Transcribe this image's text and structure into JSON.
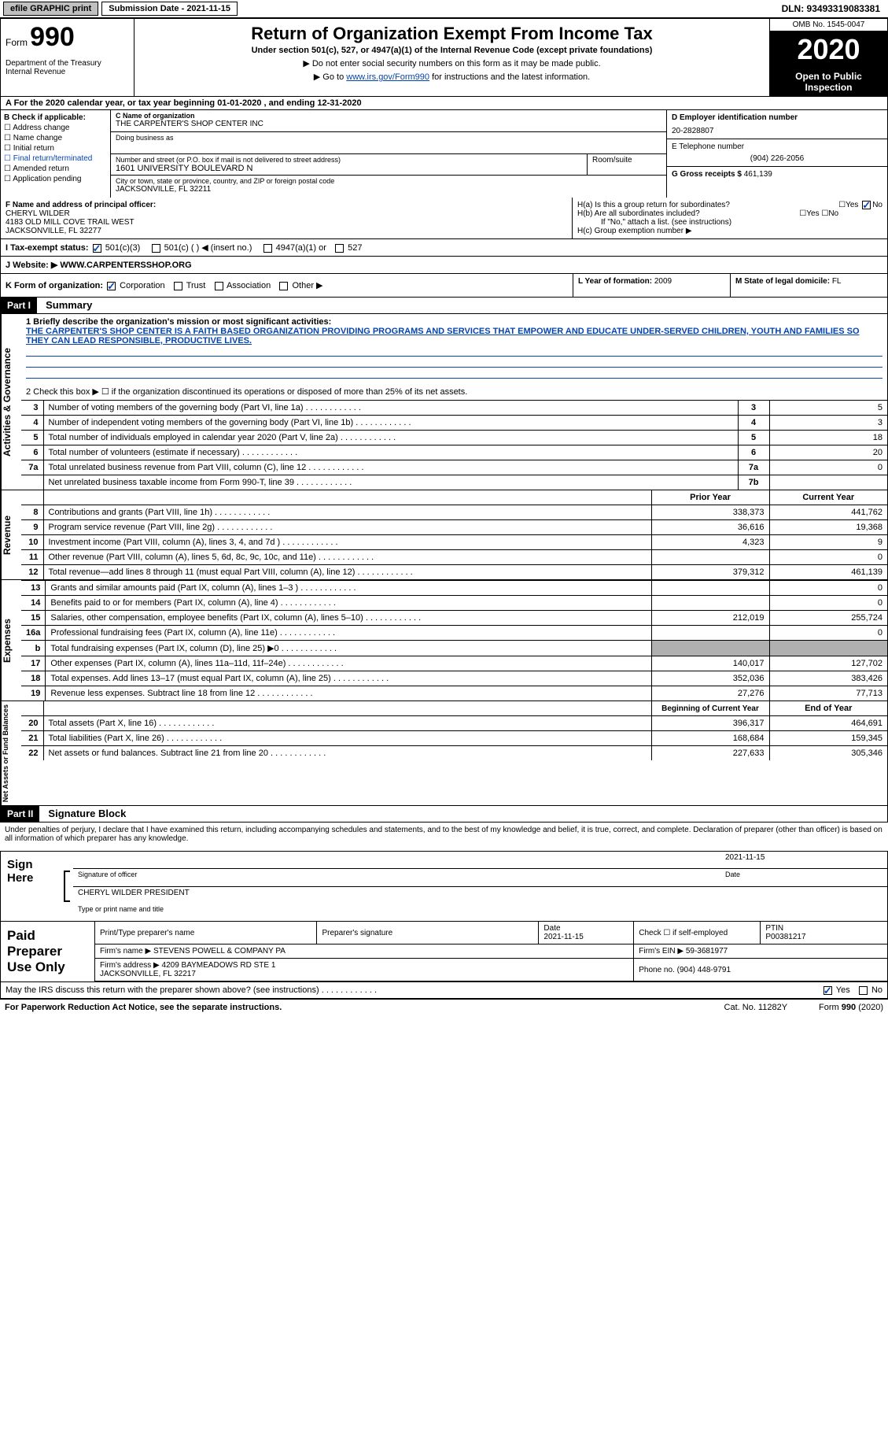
{
  "topbar": {
    "efile": "efile GRAPHIC print",
    "submission": "Submission Date - 2021-11-15",
    "dln": "DLN: 93493319083381"
  },
  "header": {
    "form_label": "Form",
    "form_no": "990",
    "dept": "Department of the Treasury\nInternal Revenue",
    "title": "Return of Organization Exempt From Income Tax",
    "subtitle": "Under section 501(c), 527, or 4947(a)(1) of the Internal Revenue Code (except private foundations)",
    "note1": "▶ Do not enter social security numbers on this form as it may be made public.",
    "note2_pre": "▶ Go to ",
    "note2_link": "www.irs.gov/Form990",
    "note2_post": " for instructions and the latest information.",
    "omb": "OMB No. 1545-0047",
    "year": "2020",
    "open": "Open to Public Inspection"
  },
  "period": "A For the 2020 calendar year, or tax year beginning 01-01-2020   , and ending 12-31-2020",
  "section_b": {
    "check_label": "B Check if applicable:",
    "checks": [
      "Address change",
      "Name change",
      "Initial return",
      "Final return/terminated",
      "Amended return",
      "Application pending"
    ],
    "c_label": "C Name of organization",
    "org_name": "THE CARPENTER'S SHOP CENTER INC",
    "dba_label": "Doing business as",
    "addr_label": "Number and street (or P.O. box if mail is not delivered to street address)",
    "room_label": "Room/suite",
    "addr": "1601 UNIVERSITY BOULEVARD N",
    "city_label": "City or town, state or province, country, and ZIP or foreign postal code",
    "city": "JACKSONVILLE, FL  32211",
    "d_label": "D Employer identification number",
    "ein": "20-2828807",
    "e_label": "E Telephone number",
    "phone": "(904) 226-2056",
    "g_label": "G Gross receipts $",
    "gross": "461,139"
  },
  "officer": {
    "f_label": "F Name and address of principal officer:",
    "name": "CHERYL WILDER",
    "addr1": "4183 OLD MILL COVE TRAIL WEST",
    "addr2": "JACKSONVILLE, FL  32277",
    "ha": "H(a)  Is this a group return for subordinates?",
    "hb": "H(b)  Are all subordinates included?",
    "hb_note": "If \"No,\" attach a list. (see instructions)",
    "hc": "H(c)  Group exemption number ▶",
    "yes": "Yes",
    "no": "No"
  },
  "status": {
    "label": "I  Tax-exempt status:",
    "opts": [
      "501(c)(3)",
      "501(c) (  ) ◀ (insert no.)",
      "4947(a)(1) or",
      "527"
    ]
  },
  "website": {
    "label": "J  Website: ▶",
    "value": "WWW.CARPENTERSSHOP.ORG"
  },
  "formorg": {
    "k_label": "K Form of organization:",
    "opts": [
      "Corporation",
      "Trust",
      "Association",
      "Other ▶"
    ],
    "l_label": "L Year of formation:",
    "l_val": "2009",
    "m_label": "M State of legal domicile:",
    "m_val": "FL"
  },
  "part1": {
    "header": "Part I",
    "title": "Summary",
    "line1_label": "1  Briefly describe the organization's mission or most significant activities:",
    "mission": "THE CARPENTER'S SHOP CENTER IS A FAITH BASED ORGANIZATION PROVIDING PROGRAMS AND SERVICES THAT EMPOWER AND EDUCATE UNDER-SERVED CHILDREN, YOUTH AND FAMILIES SO THEY CAN LEAD RESPONSIBLE, PRODUCTIVE LIVES.",
    "line2": "2  Check this box ▶ ☐  if the organization discontinued its operations or disposed of more than 25% of its net assets.",
    "governance": [
      {
        "n": "3",
        "label": "Number of voting members of the governing body (Part VI, line 1a)",
        "col": "3",
        "val": "5"
      },
      {
        "n": "4",
        "label": "Number of independent voting members of the governing body (Part VI, line 1b)",
        "col": "4",
        "val": "3"
      },
      {
        "n": "5",
        "label": "Total number of individuals employed in calendar year 2020 (Part V, line 2a)",
        "col": "5",
        "val": "18"
      },
      {
        "n": "6",
        "label": "Total number of volunteers (estimate if necessary)",
        "col": "6",
        "val": "20"
      },
      {
        "n": "7a",
        "label": "Total unrelated business revenue from Part VIII, column (C), line 12",
        "col": "7a",
        "val": "0"
      },
      {
        "n": "",
        "label": "Net unrelated business taxable income from Form 990-T, line 39",
        "col": "7b",
        "val": ""
      }
    ],
    "prior_header": "Prior Year",
    "current_header": "Current Year",
    "revenue": [
      {
        "n": "8",
        "label": "Contributions and grants (Part VIII, line 1h)",
        "prior": "338,373",
        "curr": "441,762"
      },
      {
        "n": "9",
        "label": "Program service revenue (Part VIII, line 2g)",
        "prior": "36,616",
        "curr": "19,368"
      },
      {
        "n": "10",
        "label": "Investment income (Part VIII, column (A), lines 3, 4, and 7d )",
        "prior": "4,323",
        "curr": "9"
      },
      {
        "n": "11",
        "label": "Other revenue (Part VIII, column (A), lines 5, 6d, 8c, 9c, 10c, and 11e)",
        "prior": "",
        "curr": "0"
      },
      {
        "n": "12",
        "label": "Total revenue—add lines 8 through 11 (must equal Part VIII, column (A), line 12)",
        "prior": "379,312",
        "curr": "461,139"
      }
    ],
    "expenses": [
      {
        "n": "13",
        "label": "Grants and similar amounts paid (Part IX, column (A), lines 1–3 )",
        "prior": "",
        "curr": "0"
      },
      {
        "n": "14",
        "label": "Benefits paid to or for members (Part IX, column (A), line 4)",
        "prior": "",
        "curr": "0"
      },
      {
        "n": "15",
        "label": "Salaries, other compensation, employee benefits (Part IX, column (A), lines 5–10)",
        "prior": "212,019",
        "curr": "255,724"
      },
      {
        "n": "16a",
        "label": "Professional fundraising fees (Part IX, column (A), line 11e)",
        "prior": "",
        "curr": "0"
      },
      {
        "n": "b",
        "label": "Total fundraising expenses (Part IX, column (D), line 25) ▶0",
        "prior": "SHADE",
        "curr": "SHADE"
      },
      {
        "n": "17",
        "label": "Other expenses (Part IX, column (A), lines 11a–11d, 11f–24e)",
        "prior": "140,017",
        "curr": "127,702"
      },
      {
        "n": "18",
        "label": "Total expenses. Add lines 13–17 (must equal Part IX, column (A), line 25)",
        "prior": "352,036",
        "curr": "383,426"
      },
      {
        "n": "19",
        "label": "Revenue less expenses. Subtract line 18 from line 12",
        "prior": "27,276",
        "curr": "77,713"
      }
    ],
    "begin_header": "Beginning of Current Year",
    "end_header": "End of Year",
    "netassets": [
      {
        "n": "20",
        "label": "Total assets (Part X, line 16)",
        "prior": "396,317",
        "curr": "464,691"
      },
      {
        "n": "21",
        "label": "Total liabilities (Part X, line 26)",
        "prior": "168,684",
        "curr": "159,345"
      },
      {
        "n": "22",
        "label": "Net assets or fund balances. Subtract line 21 from line 20",
        "prior": "227,633",
        "curr": "305,346"
      }
    ],
    "sidebar_gov": "Activities & Governance",
    "sidebar_rev": "Revenue",
    "sidebar_exp": "Expenses",
    "sidebar_net": "Net Assets or Fund Balances"
  },
  "part2": {
    "header": "Part II",
    "title": "Signature Block",
    "declare": "Under penalties of perjury, I declare that I have examined this return, including accompanying schedules and statements, and to the best of my knowledge and belief, it is true, correct, and complete. Declaration of preparer (other than officer) is based on all information of which preparer has any knowledge.",
    "sign_here": "Sign Here",
    "sig_officer": "Signature of officer",
    "sig_date": "2021-11-15",
    "date_label": "Date",
    "name_title": "CHERYL WILDER  PRESIDENT",
    "type_label": "Type or print name and title",
    "paid_label": "Paid Preparer Use Only",
    "prep_name_label": "Print/Type preparer's name",
    "prep_sig_label": "Preparer's signature",
    "prep_date_label": "Date",
    "prep_date": "2021-11-15",
    "check_self": "Check ☐ if self-employed",
    "ptin_label": "PTIN",
    "ptin": "P00381217",
    "firm_name_label": "Firm's name    ▶",
    "firm_name": "STEVENS POWELL & COMPANY PA",
    "firm_ein_label": "Firm's EIN ▶",
    "firm_ein": "59-3681977",
    "firm_addr_label": "Firm's address ▶",
    "firm_addr": "4209 BAYMEADOWS RD STE 1\nJACKSONVILLE, FL  32217",
    "phone_label": "Phone no.",
    "phone": "(904) 448-9791",
    "discuss": "May the IRS discuss this return with the preparer shown above? (see instructions)",
    "yes": "Yes",
    "no": "No"
  },
  "footer": {
    "left": "For Paperwork Reduction Act Notice, see the separate instructions.",
    "mid": "Cat. No. 11282Y",
    "right": "Form 990 (2020)"
  }
}
